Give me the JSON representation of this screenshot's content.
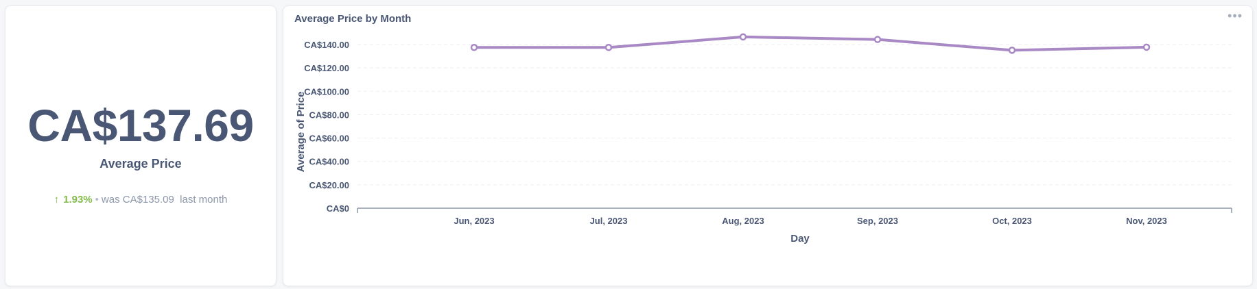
{
  "scalar": {
    "value": "CA$137.69",
    "label": "Average Price",
    "change_pct": "1.93%",
    "separator": "•",
    "was_text": "was CA$135.09",
    "period": "last month",
    "arrow_icon": "arrow-up-icon",
    "change_color": "#84bb4c"
  },
  "chart": {
    "title": "Average Price by Month",
    "menu_icon": "more-options-icon",
    "line_color": "#a989c5"
  },
  "chart_data": {
    "type": "line",
    "xlabel": "Day",
    "ylabel": "Average of Price",
    "categories": [
      "Jun, 2023",
      "Jul, 2023",
      "Aug, 2023",
      "Sep, 2023",
      "Oct, 2023",
      "Nov, 2023"
    ],
    "series": [
      {
        "values": [
          137.5,
          137.5,
          146.5,
          144.3,
          135.1,
          137.7
        ]
      }
    ],
    "ylim": [
      0,
      140
    ],
    "yticks": [
      0,
      20,
      40,
      60,
      80,
      100,
      120,
      140
    ],
    "ytick_labels": [
      "CA$0",
      "CA$20.00",
      "CA$40.00",
      "CA$60.00",
      "CA$80.00",
      "CA$100.00",
      "CA$120.00",
      "CA$140.00"
    ],
    "grid": true,
    "legend": "none"
  }
}
